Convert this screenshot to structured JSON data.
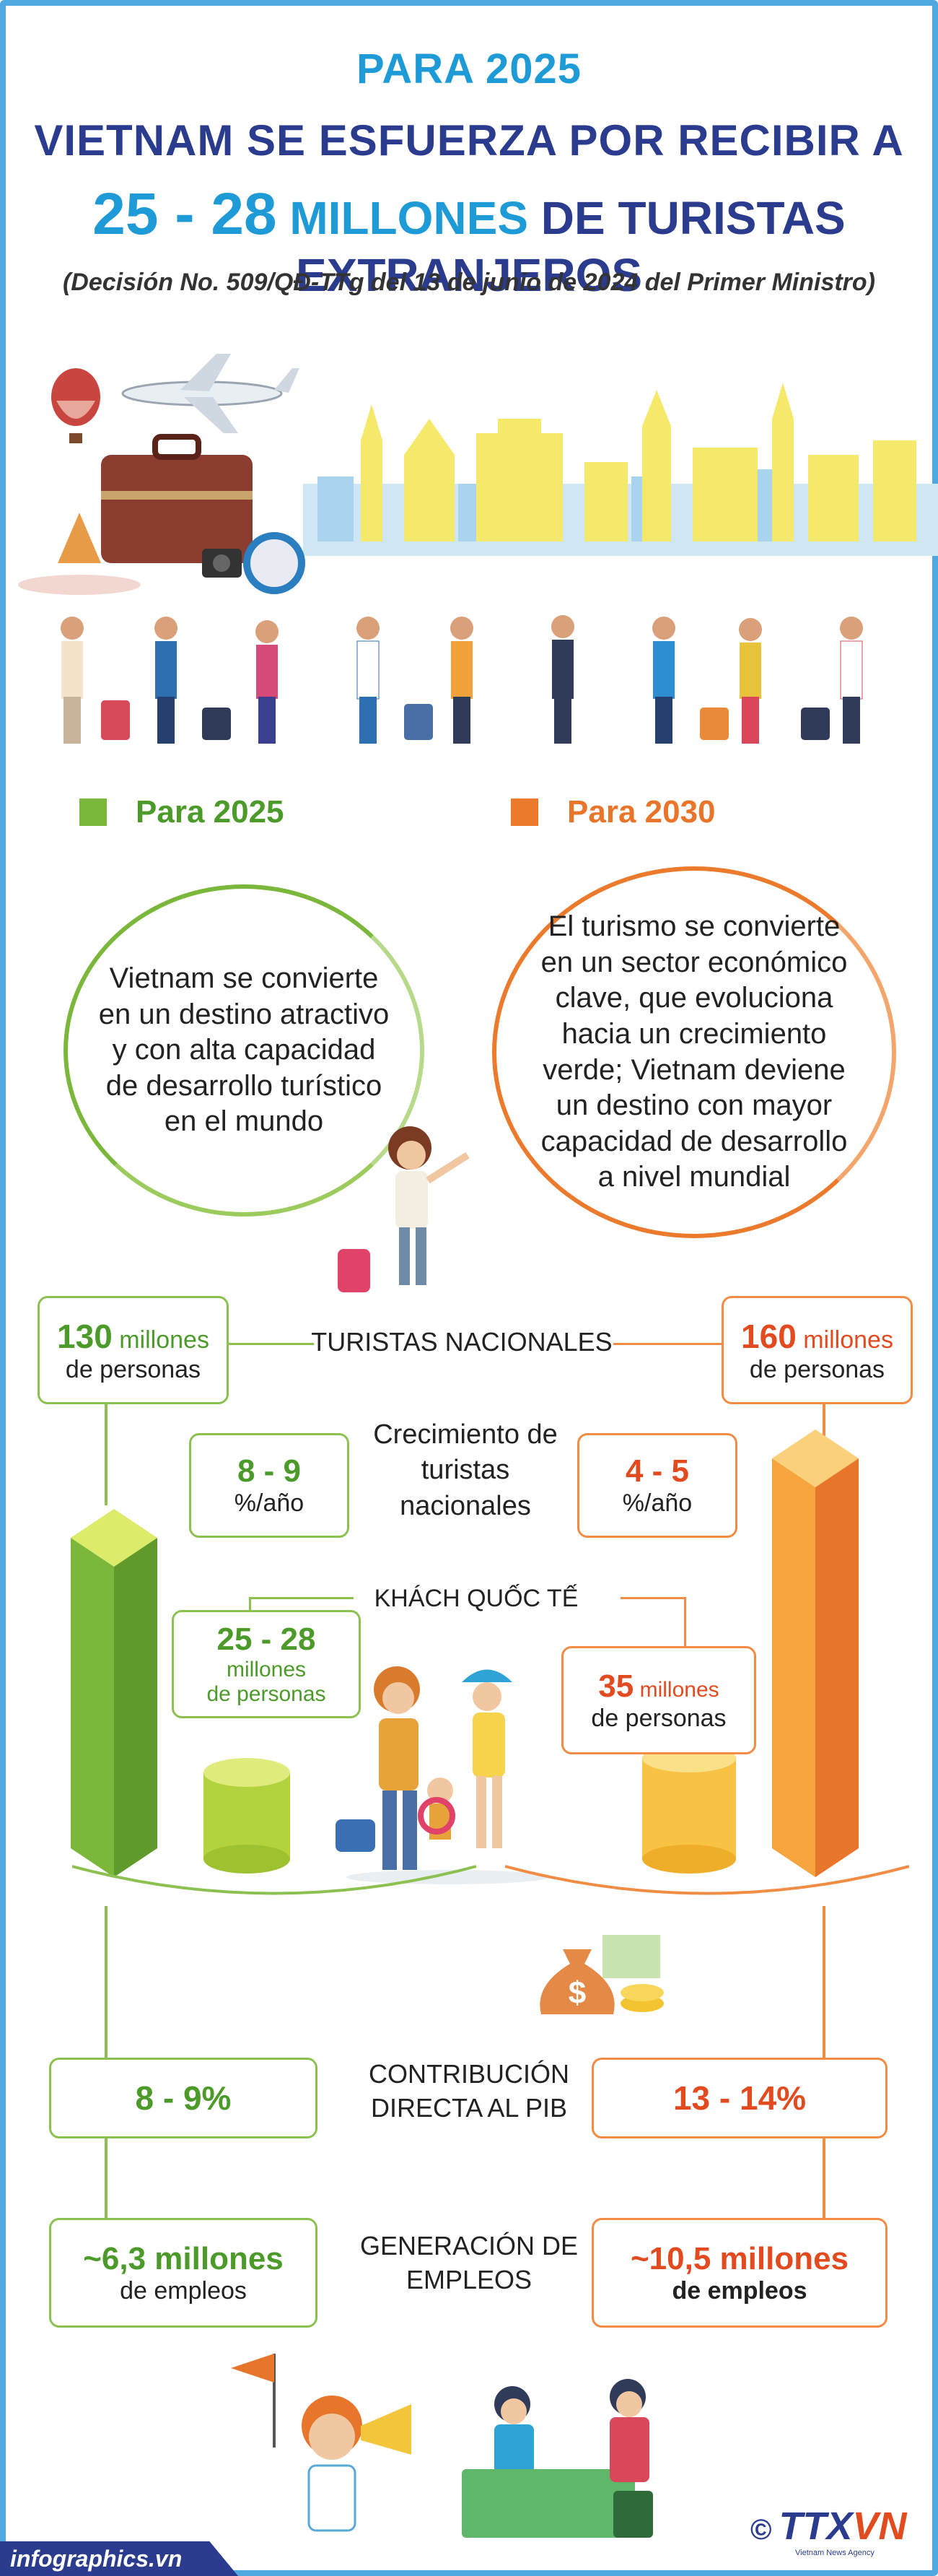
{
  "header": {
    "line1": "PARA 2025",
    "line2": "VIETNAM SE ESFUERZA POR RECIBIR A",
    "line3_number": "25 - 28",
    "line3_mid": "MILLONES",
    "line3_end": "DE TURISTAS EXTRANJEROS",
    "subtitle": "(Decisión No. 509/QĐ-TTg  del 13 de junio de 2024 del Primer Ministro)"
  },
  "targets": {
    "y2025": {
      "heading": "Para 2025",
      "goal": "Vietnam se convierte en un destino atractivo y con alta capacidad de desarrollo turístico en el mundo"
    },
    "y2030": {
      "heading": "Para 2030",
      "goal": "El turismo se convierte en un sector económico clave, que evoluciona hacia un crecimiento verde; Vietnam deviene un destino con mayor capacidad de desarrollo a nivel mundial"
    }
  },
  "stats": {
    "domestic": {
      "label": "TURISTAS NACIONALES",
      "y2025_value": "130",
      "y2025_unit": " millones",
      "y2025_sub": "de personas",
      "y2030_value": "160",
      "y2030_unit": " millones",
      "y2030_sub": "de personas"
    },
    "growth": {
      "label": "Crecimiento de turistas nacionales",
      "y2025_value": "8 - 9",
      "y2025_sub": "%/año",
      "y2030_value": "4 - 5",
      "y2030_sub": "%/año"
    },
    "international": {
      "label": "KHÁCH QUỐC TẾ",
      "y2025_value": "25 - 28",
      "y2025_sub1": "millones",
      "y2025_sub2": "de personas",
      "y2030_value": "35",
      "y2030_unit": " millones",
      "y2030_sub": "de personas"
    },
    "gdp": {
      "label": "CONTRIBUCIÓN DIRECTA AL PIB",
      "y2025_value": "8 - 9%",
      "y2030_value": "13 - 14%"
    },
    "jobs": {
      "label": "GENERACIÓN DE EMPLEOS",
      "y2025_value": "~6,3 millones",
      "y2025_sub": "de empleos",
      "y2030_value": "~10,5 millones",
      "y2030_sub": "de empleos"
    }
  },
  "footer": {
    "site": "infographics.vn",
    "copyright": "©",
    "brand_a": "TTX",
    "brand_b": "VN",
    "brand_sub": "Vietnam News Agency"
  },
  "colors": {
    "blue": "#1e9bd7",
    "navy": "#2b3c8f",
    "green": "#7ab73a",
    "orange": "#ec7a2c",
    "red": "#e24a1f"
  },
  "icons": [
    "airplane-icon",
    "balloon-icon",
    "suitcase-icon",
    "money-bag-icon",
    "megaphone-icon"
  ]
}
